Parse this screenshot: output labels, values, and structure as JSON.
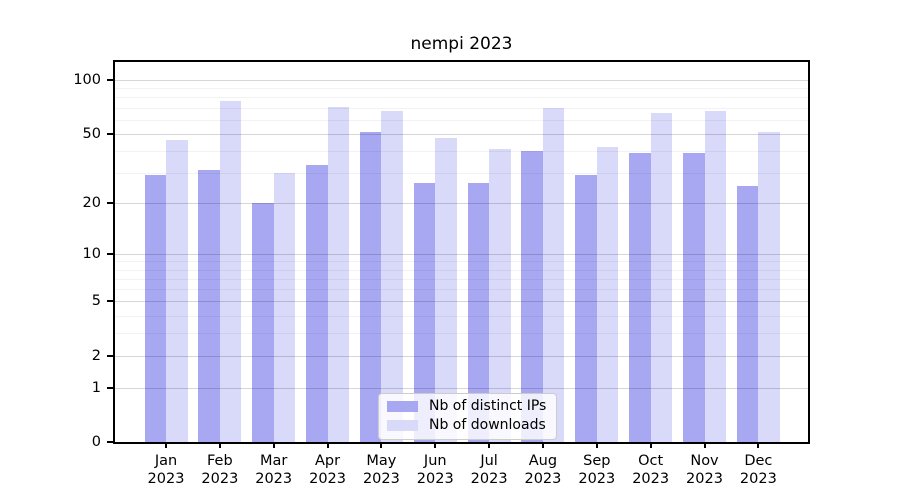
{
  "title": "nempi 2023",
  "chart_data": {
    "type": "bar",
    "title": "nempi 2023",
    "categories": [
      "Jan",
      "Feb",
      "Mar",
      "Apr",
      "May",
      "Jun",
      "Jul",
      "Aug",
      "Sep",
      "Oct",
      "Nov",
      "Dec"
    ],
    "year_label": "2023",
    "series": [
      {
        "key": "ips",
        "name": "Nb of distinct IPs",
        "color": "#a8a8f2",
        "values": [
          29,
          31,
          20,
          33,
          51,
          26,
          26,
          40,
          29,
          39,
          39,
          25
        ]
      },
      {
        "key": "downloads",
        "name": "Nb of downloads",
        "color": "#d9d9f9",
        "values": [
          46,
          76,
          30,
          71,
          67,
          47,
          41,
          70,
          42,
          65,
          67,
          51
        ]
      }
    ],
    "xlabel": "",
    "ylabel": "",
    "yscale": "log1p",
    "ylim": [
      0,
      126
    ],
    "y_major_ticks": [
      100,
      50,
      20,
      10,
      5,
      2,
      1,
      0
    ],
    "y_minor_gridlines": [
      3,
      4,
      6,
      7,
      8,
      9,
      30,
      40,
      60,
      70,
      80,
      90
    ],
    "grid": "horizontal major+minor gridlines drawn over bars",
    "legend_position": "inside bottom-center"
  },
  "colors": {
    "background": "#ffffff",
    "bar_dark": "#a8a8f2",
    "bar_light": "#d9d9f9",
    "axis": "#000000",
    "major_grid": "rgba(0,0,0,0.16)",
    "minor_grid": "rgba(0,0,0,0.05)",
    "legend_border": "#cccccc",
    "legend_background": "rgba(255,255,255,0.8)",
    "text": "#000000"
  }
}
